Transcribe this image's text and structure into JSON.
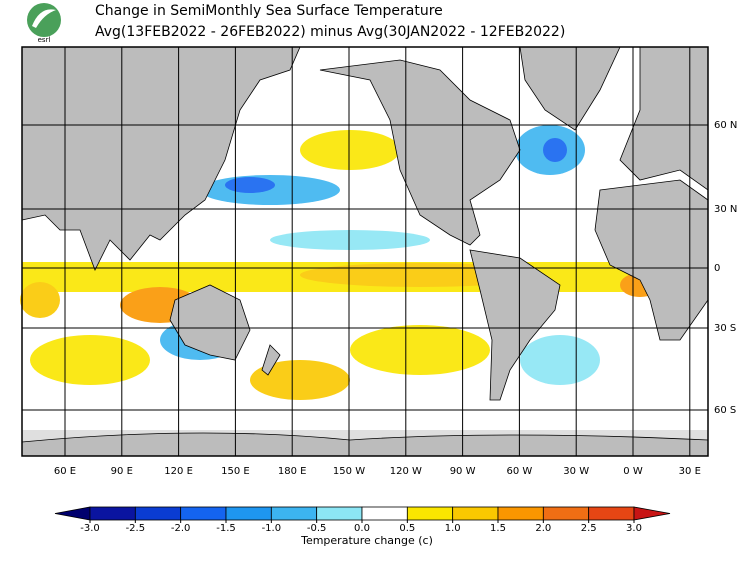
{
  "header": {
    "title_lines": [
      "Change in SemiMonthly Sea Surface Temperature",
      "Avg(13FEB2022 - 26FEB2022) minus Avg(30JAN2022 - 12FEB2022)"
    ],
    "logo_text": "esrl"
  },
  "map": {
    "lon_labels": [
      "60 E",
      "90 E",
      "120 E",
      "150 E",
      "180 E",
      "150 W",
      "120 W",
      "90 W",
      "60 W",
      "30 W",
      "0 W",
      "30 E"
    ],
    "lat_labels": [
      "60 N",
      "30 N",
      "0",
      "30 S",
      "60 S"
    ]
  },
  "colorbar": {
    "label": "Temperature change  (c)",
    "ticks": [
      {
        "value": -3,
        "label": "-3.0"
      },
      {
        "value": -2.5,
        "label": "-2.5"
      },
      {
        "value": -2,
        "label": "-2.0"
      },
      {
        "value": -1.5,
        "label": "-1.5"
      },
      {
        "value": -1,
        "label": "-1.0"
      },
      {
        "value": -0.5,
        "label": "-0.5"
      },
      {
        "value": 0,
        "label": "0.0"
      },
      {
        "value": 0.5,
        "label": "0.5"
      },
      {
        "value": 1,
        "label": "1.0"
      },
      {
        "value": 1.5,
        "label": "1.5"
      },
      {
        "value": 2,
        "label": "2.0"
      },
      {
        "value": 2.5,
        "label": "2.5"
      },
      {
        "value": 3,
        "label": "3.0"
      }
    ],
    "colors": [
      "#00006e",
      "#0a14a0",
      "#0a3cd2",
      "#1464f0",
      "#1e96f0",
      "#3cb4f0",
      "#8ce6f5",
      "#ffffff",
      "#fae600",
      "#fac800",
      "#fa9600",
      "#f06e14",
      "#e64614",
      "#c81414"
    ]
  }
}
